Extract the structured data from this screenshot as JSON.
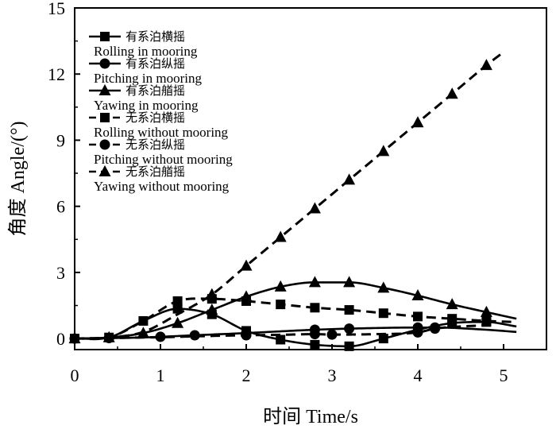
{
  "chart_data": {
    "type": "line",
    "xlabel": "时间 Time/s",
    "ylabel": "角度 Angle/(°)",
    "xlim": [
      0,
      5.5
    ],
    "ylim": [
      -0.5,
      15
    ],
    "x_ticks": [
      "0",
      "1",
      "2",
      "3",
      "4",
      "5"
    ],
    "y_ticks": [
      "0",
      "3",
      "6",
      "9",
      "12",
      "15"
    ],
    "grid": false,
    "legend_position": "top-left",
    "series": [
      {
        "name_zh": "有系泊横摇",
        "name": "Rolling in mooring",
        "marker": "square",
        "dash": false,
        "x": [
          0,
          0.4,
          0.8,
          1.2,
          1.6,
          2.0,
          2.4,
          2.8,
          3.2,
          3.6,
          4.0,
          4.4,
          4.8,
          5.15
        ],
        "y": [
          0,
          0.05,
          0.8,
          1.35,
          1.1,
          0.35,
          -0.05,
          -0.28,
          -0.35,
          0.0,
          0.4,
          0.7,
          0.75,
          0.55
        ]
      },
      {
        "name_zh": "有系泊纵摇",
        "name": "Pitching in mooring",
        "marker": "circle",
        "dash": false,
        "x": [
          0,
          0.4,
          0.8,
          1.0,
          1.4,
          2.0,
          2.8,
          3.2,
          4.0,
          4.2,
          4.8,
          5.15
        ],
        "y": [
          0,
          0.02,
          0.05,
          0.08,
          0.15,
          0.25,
          0.4,
          0.45,
          0.5,
          0.5,
          0.4,
          0.3
        ]
      },
      {
        "name_zh": "有系泊艏摇",
        "name": "Yawing in mooring",
        "marker": "triangle",
        "dash": false,
        "x": [
          0,
          0.4,
          0.8,
          1.2,
          1.6,
          2.0,
          2.4,
          2.8,
          3.2,
          3.6,
          4.0,
          4.4,
          4.8,
          5.15
        ],
        "y": [
          0,
          0.05,
          0.25,
          0.7,
          1.3,
          1.9,
          2.35,
          2.55,
          2.55,
          2.3,
          1.95,
          1.55,
          1.2,
          0.9
        ]
      },
      {
        "name_zh": "无系泊横摇",
        "name": "Rolling without mooring",
        "marker": "square",
        "dash": true,
        "x": [
          0,
          0.4,
          0.8,
          1.2,
          1.6,
          2.0,
          2.4,
          2.8,
          3.2,
          3.6,
          4.0,
          4.4,
          4.8,
          5.15
        ],
        "y": [
          0,
          0.05,
          0.8,
          1.7,
          1.8,
          1.7,
          1.55,
          1.4,
          1.3,
          1.15,
          1.0,
          0.9,
          0.8,
          0.75
        ]
      },
      {
        "name_zh": "无系泊纵摇",
        "name": "Pitching without mooring",
        "marker": "circle",
        "dash": true,
        "x": [
          0,
          0.4,
          0.8,
          1.0,
          1.4,
          1.6,
          2.0,
          2.4,
          2.8,
          3.0,
          3.5,
          4.0,
          4.2,
          4.5,
          4.8
        ],
        "y": [
          0,
          0.02,
          0.05,
          0.06,
          0.1,
          0.12,
          0.15,
          0.17,
          0.2,
          0.18,
          0.2,
          0.28,
          0.45,
          0.55,
          0.6
        ]
      },
      {
        "name_zh": "无系泊艏摇",
        "name": "Yawing without mooring",
        "marker": "triangle",
        "dash": true,
        "x": [
          0,
          0.4,
          0.8,
          1.2,
          1.6,
          2.0,
          2.4,
          2.8,
          3.2,
          3.6,
          4.0,
          4.4,
          4.8,
          5.0
        ],
        "y": [
          0,
          0.05,
          0.3,
          1.1,
          2.0,
          3.3,
          4.6,
          5.9,
          7.2,
          8.5,
          9.8,
          11.1,
          12.4,
          13.0
        ]
      }
    ],
    "marker_points": [
      {
        "series": 0,
        "x": [
          0,
          0.4,
          0.8,
          1.2,
          1.6,
          2.0,
          2.4,
          2.8,
          3.2,
          3.6,
          4.0,
          4.4,
          4.8
        ]
      },
      {
        "series": 1,
        "x": [
          0,
          0.4,
          1.0,
          1.4,
          2.0,
          2.8,
          3.2,
          4.0,
          4.2
        ]
      },
      {
        "series": 2,
        "x": [
          0,
          0.4,
          0.8,
          1.2,
          1.6,
          2.0,
          2.4,
          2.8,
          3.2,
          3.6,
          4.0,
          4.4,
          4.8
        ]
      },
      {
        "series": 3,
        "x": [
          1.2,
          1.6,
          2.0,
          2.4,
          2.8,
          3.2,
          3.6,
          4.0,
          4.4,
          4.8
        ]
      },
      {
        "series": 4,
        "x": [
          2.0,
          2.8,
          3.0,
          4.0,
          4.2
        ]
      },
      {
        "series": 5,
        "x": [
          1.6,
          2.0,
          2.4,
          2.8,
          3.2,
          3.6,
          4.0,
          4.4,
          4.8
        ]
      }
    ]
  }
}
